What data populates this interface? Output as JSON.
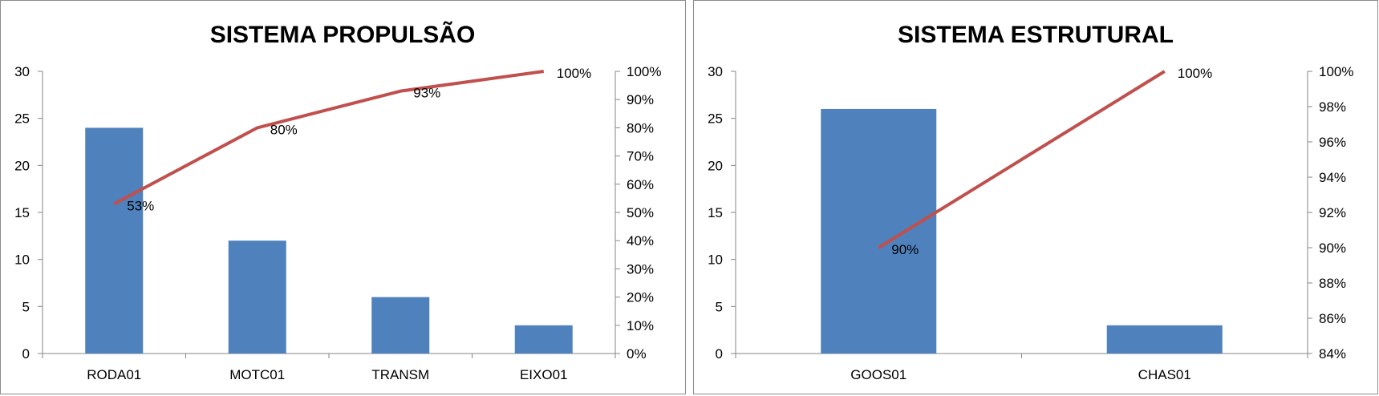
{
  "chart_data": [
    {
      "type": "bar",
      "title": "SISTEMA PROPULSÃO",
      "categories": [
        "RODA01",
        "MOTC01",
        "TRANSM",
        "EIXO01"
      ],
      "values": [
        24,
        12,
        6,
        3
      ],
      "line_values": [
        53,
        80,
        93,
        100
      ],
      "line_labels": [
        "53%",
        "80%",
        "93%",
        "100%"
      ],
      "ylim": [
        0,
        30
      ],
      "y_ticks": [
        "0",
        "5",
        "10",
        "15",
        "20",
        "25",
        "30"
      ],
      "y2lim": [
        0,
        100
      ],
      "y2_ticks": [
        "0%",
        "10%",
        "20%",
        "30%",
        "40%",
        "50%",
        "60%",
        "70%",
        "80%",
        "90%",
        "100%"
      ],
      "bar_color": "#4f81bd",
      "line_color": "#c0504d",
      "grid": false
    },
    {
      "type": "bar",
      "title": "SISTEMA ESTRUTURAL",
      "categories": [
        "GOOS01",
        "CHAS01"
      ],
      "values": [
        26,
        3
      ],
      "line_values": [
        90,
        100
      ],
      "line_labels": [
        "90%",
        "100%"
      ],
      "ylim": [
        0,
        30
      ],
      "y_ticks": [
        "0",
        "5",
        "10",
        "15",
        "20",
        "25",
        "30"
      ],
      "y2lim": [
        84,
        100
      ],
      "y2_ticks": [
        "84%",
        "86%",
        "88%",
        "90%",
        "92%",
        "94%",
        "96%",
        "98%",
        "100%"
      ],
      "bar_color": "#4f81bd",
      "line_color": "#c0504d",
      "grid": false
    }
  ]
}
